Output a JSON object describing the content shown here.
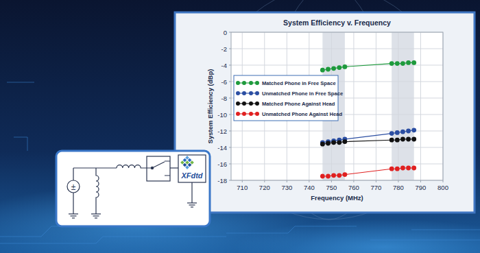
{
  "chart_data": {
    "type": "line",
    "title": "System Efficiency v. Frequency",
    "x_label": "Frequency (MHz)",
    "y_label": "System Efficiency (dBp)",
    "x": [
      746,
      748.5,
      751,
      753.5,
      756,
      777,
      779.5,
      782,
      784.5,
      787
    ],
    "series": [
      {
        "name": "Matched Phone in Free Space",
        "color": "#1e9a3c",
        "marker": "circle",
        "line_style": "solid",
        "values": [
          -4.6,
          -4.5,
          -4.4,
          -4.3,
          -4.2,
          -3.8,
          -3.8,
          -3.8,
          -3.7,
          -3.7
        ]
      },
      {
        "name": "Unmatched Phone in Free Space",
        "color": "#2b4ea2",
        "marker": "circle",
        "line_style": "solid",
        "values": [
          -13.4,
          -13.3,
          -13.2,
          -13.1,
          -13.0,
          -12.3,
          -12.2,
          -12.1,
          -12.0,
          -11.9
        ]
      },
      {
        "name": "Matched Phone Against Head",
        "color": "#111111",
        "marker": "circle",
        "line_style": "solid",
        "values": [
          -13.6,
          -13.5,
          -13.4,
          -13.4,
          -13.3,
          -13.1,
          -13.1,
          -13.0,
          -13.0,
          -13.0
        ]
      },
      {
        "name": "Unmatched Phone Against Head",
        "color": "#e02020",
        "marker": "circle",
        "line_style": "solid",
        "values": [
          -17.5,
          -17.5,
          -17.4,
          -17.4,
          -17.3,
          -16.6,
          -16.6,
          -16.5,
          -16.5,
          -16.5
        ]
      }
    ],
    "xlim": [
      705,
      800
    ],
    "xticks": [
      710,
      720,
      730,
      740,
      750,
      760,
      770,
      780,
      790,
      800
    ],
    "ylim": [
      -18,
      0
    ],
    "yticks": [
      -18,
      -16,
      -14,
      -12,
      -10,
      -8,
      -6,
      -4,
      -2,
      0
    ],
    "grid": true,
    "legend": "left",
    "shaded_ranges": [
      {
        "from": 746,
        "to": 756
      },
      {
        "from": 777,
        "to": 787
      }
    ]
  },
  "inset": {
    "logo": "XFdtd",
    "source_symbol": "±"
  }
}
